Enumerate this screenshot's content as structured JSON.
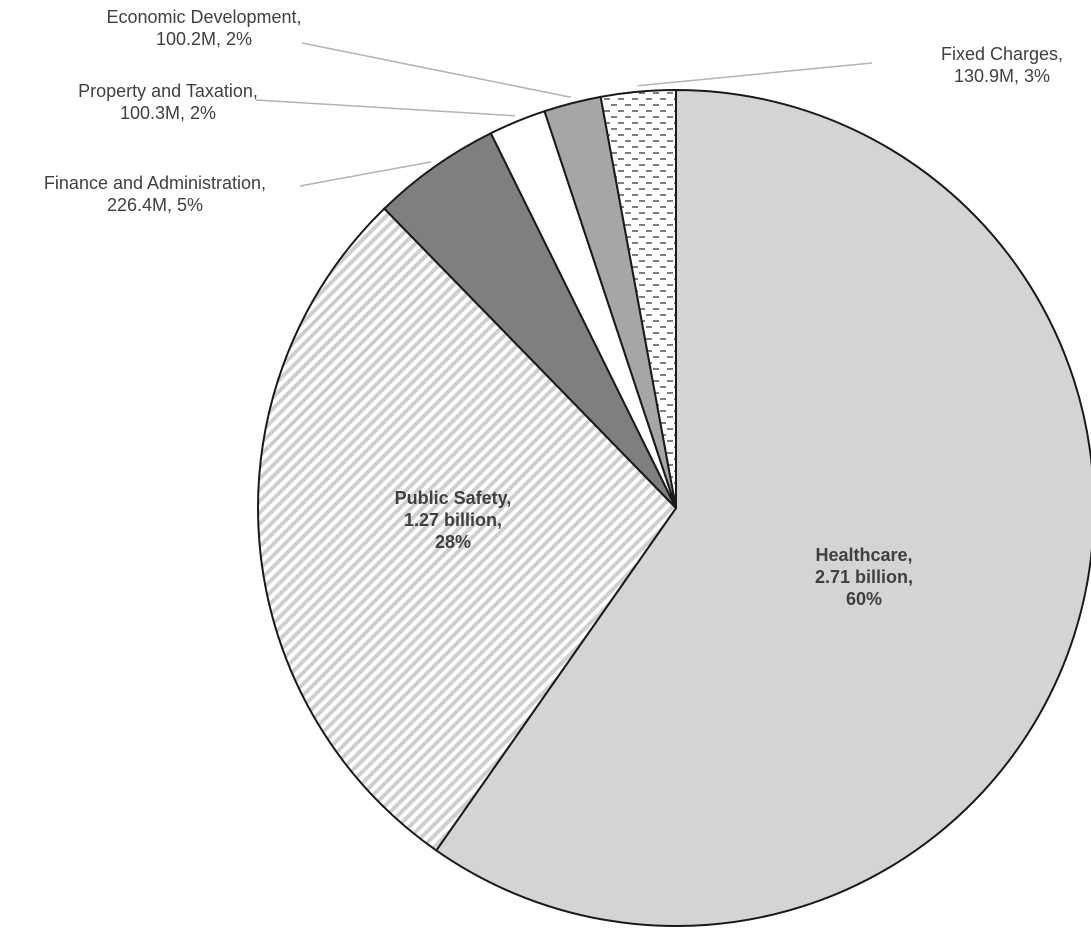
{
  "chart_data": {
    "type": "pie",
    "title": "",
    "slices": [
      {
        "name": "Healthcare",
        "value_text": "2.71 billion",
        "value": 2710,
        "percent": "60%",
        "pattern": "solid-light-gray"
      },
      {
        "name": "Public Safety",
        "value_text": "1.27 billion",
        "value": 1270,
        "percent": "28%",
        "pattern": "diagonal-stripes"
      },
      {
        "name": "Finance and Administration",
        "value_text": "226.4M",
        "value": 226.4,
        "percent": "5%",
        "pattern": "solid-dark-gray"
      },
      {
        "name": "Property and Taxation",
        "value_text": "100.3M",
        "value": 100.3,
        "percent": "2%",
        "pattern": "solid-white"
      },
      {
        "name": "Economic Development",
        "value_text": "100.2M",
        "value": 100.2,
        "percent": "2%",
        "pattern": "solid-mid-gray"
      },
      {
        "name": "Fixed Charges",
        "value_text": "130.9M",
        "value": 130.9,
        "percent": "3%",
        "pattern": "dashes"
      }
    ],
    "colors": {
      "healthcare": "#d4d4d4",
      "stripe_fg": "#cfcfcf",
      "finance": "#7f7f7f",
      "property": "#ffffff",
      "economic": "#a6a6a6",
      "dash_fg": "#555555",
      "outline": "#1a1a1a",
      "leader": "#b3b3b3",
      "label": "#404040"
    }
  }
}
